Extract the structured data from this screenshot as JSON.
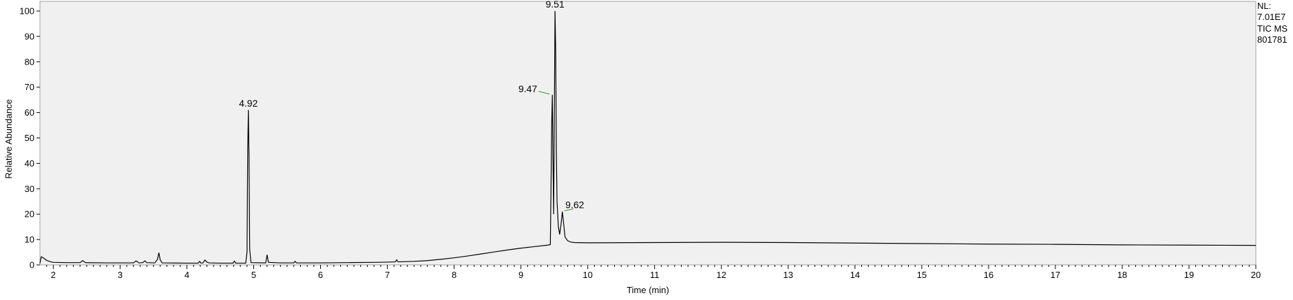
{
  "chart_data": {
    "type": "line",
    "title": "",
    "xlabel": "Time (min)",
    "ylabel": "Relative Abundance",
    "xlim": [
      1.8,
      20.0
    ],
    "ylim": [
      0,
      100
    ],
    "x_ticks": [
      2,
      3,
      4,
      5,
      6,
      7,
      8,
      9,
      10,
      11,
      12,
      13,
      14,
      15,
      16,
      17,
      18,
      19,
      20
    ],
    "y_ticks": [
      0,
      10,
      20,
      30,
      40,
      50,
      60,
      70,
      80,
      90,
      100
    ],
    "grid": false,
    "info_box": [
      "NL:",
      "7.01E7",
      "TIC  MS",
      "801781"
    ],
    "peak_labels": [
      {
        "label": "4.92",
        "x": 4.92,
        "y": 61
      },
      {
        "label": "9.47",
        "x": 9.47,
        "y": 67
      },
      {
        "label": "9.51",
        "x": 9.51,
        "y": 100
      },
      {
        "label": "9.62",
        "x": 9.62,
        "y": 21
      }
    ],
    "series": [
      {
        "color": "#000000",
        "points": [
          [
            1.8,
            0.6
          ],
          [
            1.82,
            3.2
          ],
          [
            1.86,
            2.6
          ],
          [
            1.9,
            1.8
          ],
          [
            1.95,
            1.3
          ],
          [
            2.0,
            1.0
          ],
          [
            2.2,
            0.9
          ],
          [
            2.4,
            0.9
          ],
          [
            2.44,
            1.7
          ],
          [
            2.48,
            0.9
          ],
          [
            2.8,
            0.8
          ],
          [
            3.2,
            0.8
          ],
          [
            3.24,
            1.6
          ],
          [
            3.28,
            0.8
          ],
          [
            3.34,
            0.9
          ],
          [
            3.37,
            1.6
          ],
          [
            3.4,
            0.9
          ],
          [
            3.52,
            0.8
          ],
          [
            3.56,
            2.2
          ],
          [
            3.58,
            4.8
          ],
          [
            3.6,
            2.0
          ],
          [
            3.63,
            0.8
          ],
          [
            4.0,
            0.7
          ],
          [
            4.17,
            0.7
          ],
          [
            4.19,
            1.4
          ],
          [
            4.21,
            0.7
          ],
          [
            4.24,
            0.8
          ],
          [
            4.27,
            1.9
          ],
          [
            4.3,
            1.1
          ],
          [
            4.33,
            0.8
          ],
          [
            4.5,
            0.7
          ],
          [
            4.69,
            0.7
          ],
          [
            4.71,
            1.5
          ],
          [
            4.73,
            0.7
          ],
          [
            4.88,
            0.7
          ],
          [
            4.9,
            5.0
          ],
          [
            4.91,
            45.0
          ],
          [
            4.92,
            61.0
          ],
          [
            4.93,
            42.0
          ],
          [
            4.94,
            6.0
          ],
          [
            4.96,
            0.9
          ],
          [
            5.18,
            0.8
          ],
          [
            5.2,
            4.0
          ],
          [
            5.22,
            1.0
          ],
          [
            5.4,
            0.8
          ],
          [
            5.6,
            0.8
          ],
          [
            5.62,
            1.4
          ],
          [
            5.64,
            0.8
          ],
          [
            6.0,
            0.8
          ],
          [
            6.4,
            0.9
          ],
          [
            6.8,
            1.0
          ],
          [
            7.0,
            1.1
          ],
          [
            7.12,
            1.2
          ],
          [
            7.14,
            2.0
          ],
          [
            7.16,
            1.2
          ],
          [
            7.4,
            1.4
          ],
          [
            7.6,
            1.7
          ],
          [
            7.8,
            2.2
          ],
          [
            8.0,
            2.8
          ],
          [
            8.2,
            3.5
          ],
          [
            8.4,
            4.3
          ],
          [
            8.6,
            5.1
          ],
          [
            8.8,
            5.9
          ],
          [
            9.0,
            6.6
          ],
          [
            9.2,
            7.2
          ],
          [
            9.4,
            7.8
          ],
          [
            9.44,
            8.0
          ],
          [
            9.45,
            30.0
          ],
          [
            9.46,
            55.0
          ],
          [
            9.47,
            67.0
          ],
          [
            9.48,
            40.0
          ],
          [
            9.49,
            20.0
          ],
          [
            9.5,
            60.0
          ],
          [
            9.51,
            100.0
          ],
          [
            9.52,
            85.0
          ],
          [
            9.53,
            45.0
          ],
          [
            9.54,
            25.0
          ],
          [
            9.56,
            15.0
          ],
          [
            9.58,
            12.0
          ],
          [
            9.6,
            16.0
          ],
          [
            9.62,
            21.0
          ],
          [
            9.64,
            16.0
          ],
          [
            9.66,
            11.0
          ],
          [
            9.7,
            9.5
          ],
          [
            9.75,
            9.0
          ],
          [
            9.8,
            8.8
          ],
          [
            10.0,
            8.7
          ],
          [
            11.0,
            8.8
          ],
          [
            12.0,
            8.9
          ],
          [
            13.0,
            8.8
          ],
          [
            14.0,
            8.6
          ],
          [
            15.0,
            8.4
          ],
          [
            16.0,
            8.2
          ],
          [
            17.0,
            8.1
          ],
          [
            18.0,
            7.9
          ],
          [
            19.0,
            7.8
          ],
          [
            20.0,
            7.7
          ]
        ]
      }
    ]
  }
}
